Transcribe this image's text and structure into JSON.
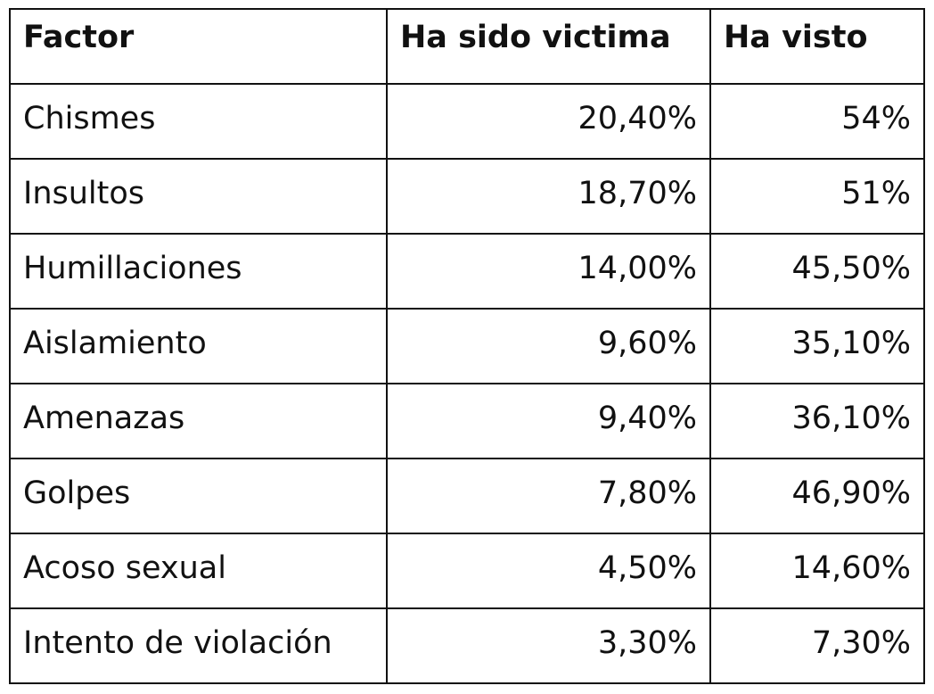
{
  "chart_data": {
    "type": "table",
    "columns": [
      "Factor",
      "Ha sido victima",
      "Ha visto"
    ],
    "rows": [
      {
        "factor": "Chismes",
        "victima": "20,40%",
        "visto": "54%"
      },
      {
        "factor": "Insultos",
        "victima": "18,70%",
        "visto": "51%"
      },
      {
        "factor": "Humillaciones",
        "victima": "14,00%",
        "visto": "45,50%"
      },
      {
        "factor": "Aislamiento",
        "victima": "9,60%",
        "visto": "35,10%"
      },
      {
        "factor": "Amenazas",
        "victima": "9,40%",
        "visto": "36,10%"
      },
      {
        "factor": "Golpes",
        "victima": "7,80%",
        "visto": "46,90%"
      },
      {
        "factor": "Acoso sexual",
        "victima": "4,50%",
        "visto": "14,60%"
      },
      {
        "factor": "Intento de violación",
        "victima": "3,30%",
        "visto": "7,30%"
      }
    ]
  }
}
